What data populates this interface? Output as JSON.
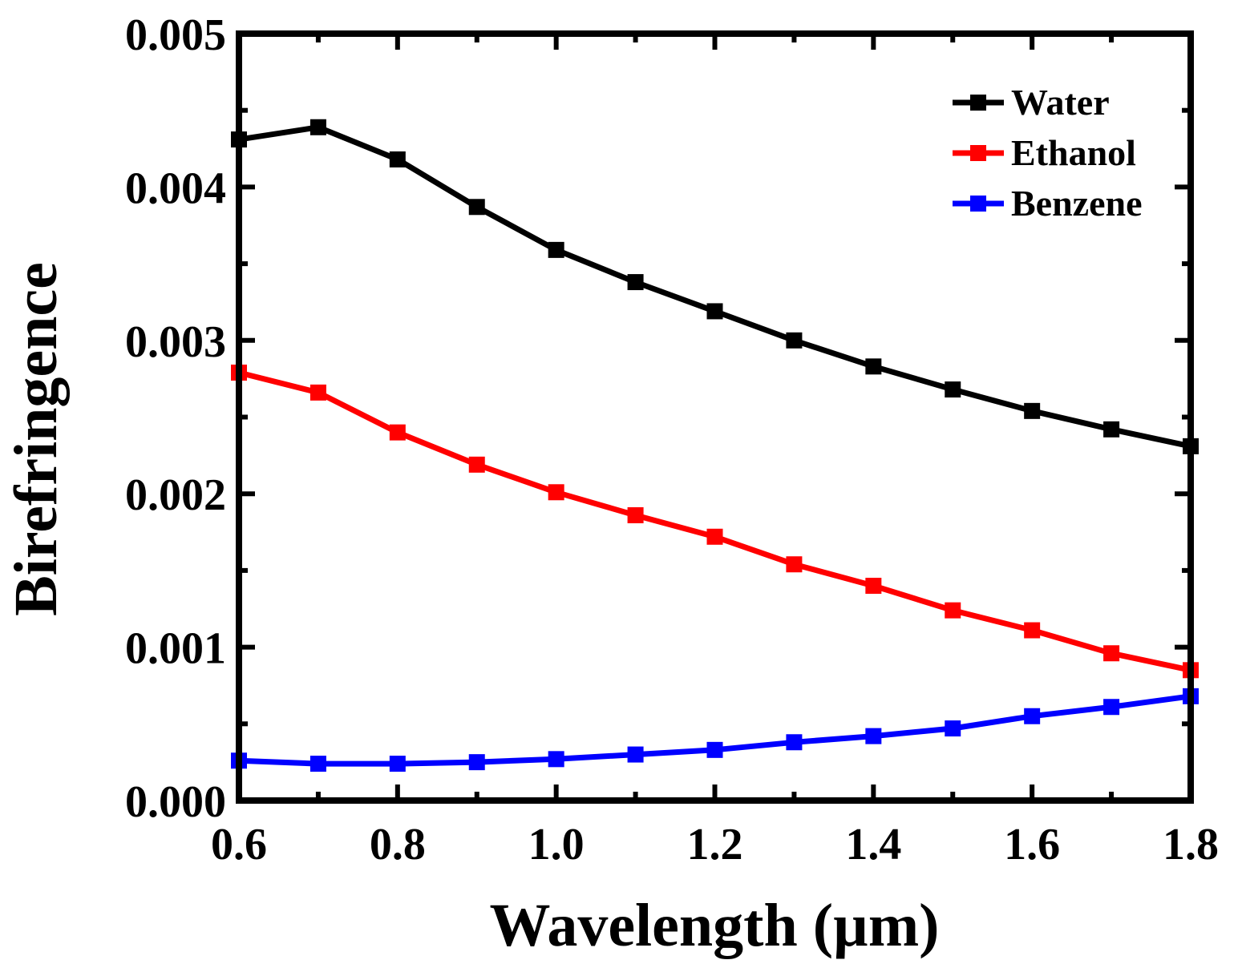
{
  "chart_data": {
    "type": "line",
    "xlabel": "Wavelength (µm)",
    "ylabel": "Birefringence",
    "xlim": [
      0.6,
      1.8
    ],
    "ylim": [
      0.0,
      0.005
    ],
    "xticks": [
      "0.6",
      "0.8",
      "1.0",
      "1.2",
      "1.4",
      "1.6",
      "1.8"
    ],
    "yticks": [
      "0.000",
      "0.001",
      "0.002",
      "0.003",
      "0.004",
      "0.005"
    ],
    "grid": false,
    "legend_position": "top-right",
    "x": [
      0.6,
      0.7,
      0.8,
      0.9,
      1.0,
      1.1,
      1.2,
      1.3,
      1.4,
      1.5,
      1.6,
      1.7,
      1.8
    ],
    "series": [
      {
        "name": "Water",
        "color": "#000000",
        "marker": "square",
        "values": [
          0.00431,
          0.00439,
          0.00418,
          0.00387,
          0.00359,
          0.00338,
          0.00319,
          0.003,
          0.00283,
          0.00268,
          0.00254,
          0.00242,
          0.00231
        ]
      },
      {
        "name": "Ethanol",
        "color": "#ff0000",
        "marker": "square",
        "values": [
          0.00279,
          0.00266,
          0.0024,
          0.00219,
          0.00201,
          0.00186,
          0.00172,
          0.00154,
          0.0014,
          0.00124,
          0.00111,
          0.00096,
          0.00085
        ]
      },
      {
        "name": "Benzene",
        "color": "#0000ff",
        "marker": "square",
        "values": [
          0.00026,
          0.00024,
          0.00024,
          0.00025,
          0.00027,
          0.0003,
          0.00033,
          0.00038,
          0.00042,
          0.00047,
          0.00055,
          0.00061,
          0.00068
        ]
      }
    ]
  }
}
